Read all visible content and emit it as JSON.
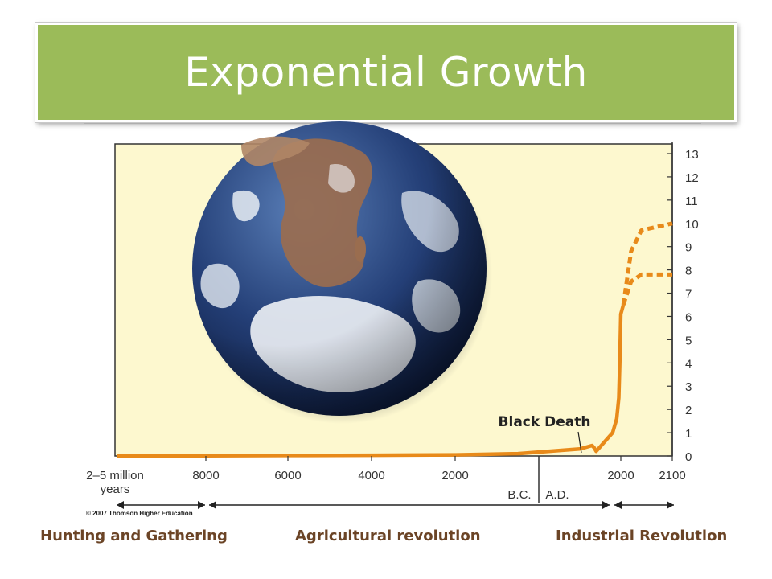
{
  "slide": {
    "title": "Exponential Growth",
    "copyright": "© 2007 Thomson Higher Education"
  },
  "colors": {
    "title_bar": "#9bbb59",
    "plot_background": "#fdf8cf",
    "curve": "#e88a1a",
    "era_label": "#6b4426"
  },
  "chart_data": {
    "type": "line",
    "title": "",
    "xlabel": "",
    "ylabel": "",
    "ylim": [
      0,
      13
    ],
    "y_ticks": [
      "0",
      "1",
      "2",
      "3",
      "4",
      "5",
      "6",
      "7",
      "8",
      "9",
      "10",
      "11",
      "12",
      "13"
    ],
    "x_tick_labels": [
      "2–5 million years",
      "8000",
      "6000",
      "4000",
      "2000",
      "2000",
      "2100"
    ],
    "era_markers": [
      "B.C.",
      "A.D."
    ],
    "annotation": "Black Death",
    "series": [
      {
        "style": "solid",
        "points": [
          [
            "2–5 million years",
            0.0
          ],
          [
            "8000 B.C.",
            0.01
          ],
          [
            "6000 B.C.",
            0.02
          ],
          [
            "4000 B.C.",
            0.03
          ],
          [
            "2000 B.C.",
            0.05
          ],
          [
            "500 B.C.",
            0.1
          ],
          [
            "A.D. 1000",
            0.3
          ],
          [
            "A.D. 1300",
            0.45
          ],
          [
            "A.D. 1350",
            0.35
          ],
          [
            "A.D. 1400",
            0.2
          ],
          [
            "A.D. 1500",
            0.4
          ],
          [
            "A.D. 1800",
            1.0
          ],
          [
            "A.D. 1900",
            1.6
          ],
          [
            "A.D. 1950",
            2.5
          ],
          [
            "A.D. 1975",
            4.0
          ],
          [
            "A.D. 2000",
            6.1
          ],
          [
            "A.D. 2005",
            6.5
          ]
        ]
      },
      {
        "style": "dashed",
        "points": [
          [
            "A.D. 2005",
            6.5
          ],
          [
            "A.D. 2020",
            8.8
          ],
          [
            "A.D. 2040",
            9.7
          ],
          [
            "A.D. 2100",
            10.0
          ]
        ]
      },
      {
        "style": "dashed",
        "points": [
          [
            "A.D. 2005",
            6.5
          ],
          [
            "A.D. 2020",
            7.5
          ],
          [
            "A.D. 2040",
            7.8
          ],
          [
            "A.D. 2100",
            7.8
          ]
        ]
      }
    ],
    "eras": [
      "Hunting and Gathering",
      "Agricultural revolution",
      "Industrial Revolution"
    ]
  }
}
